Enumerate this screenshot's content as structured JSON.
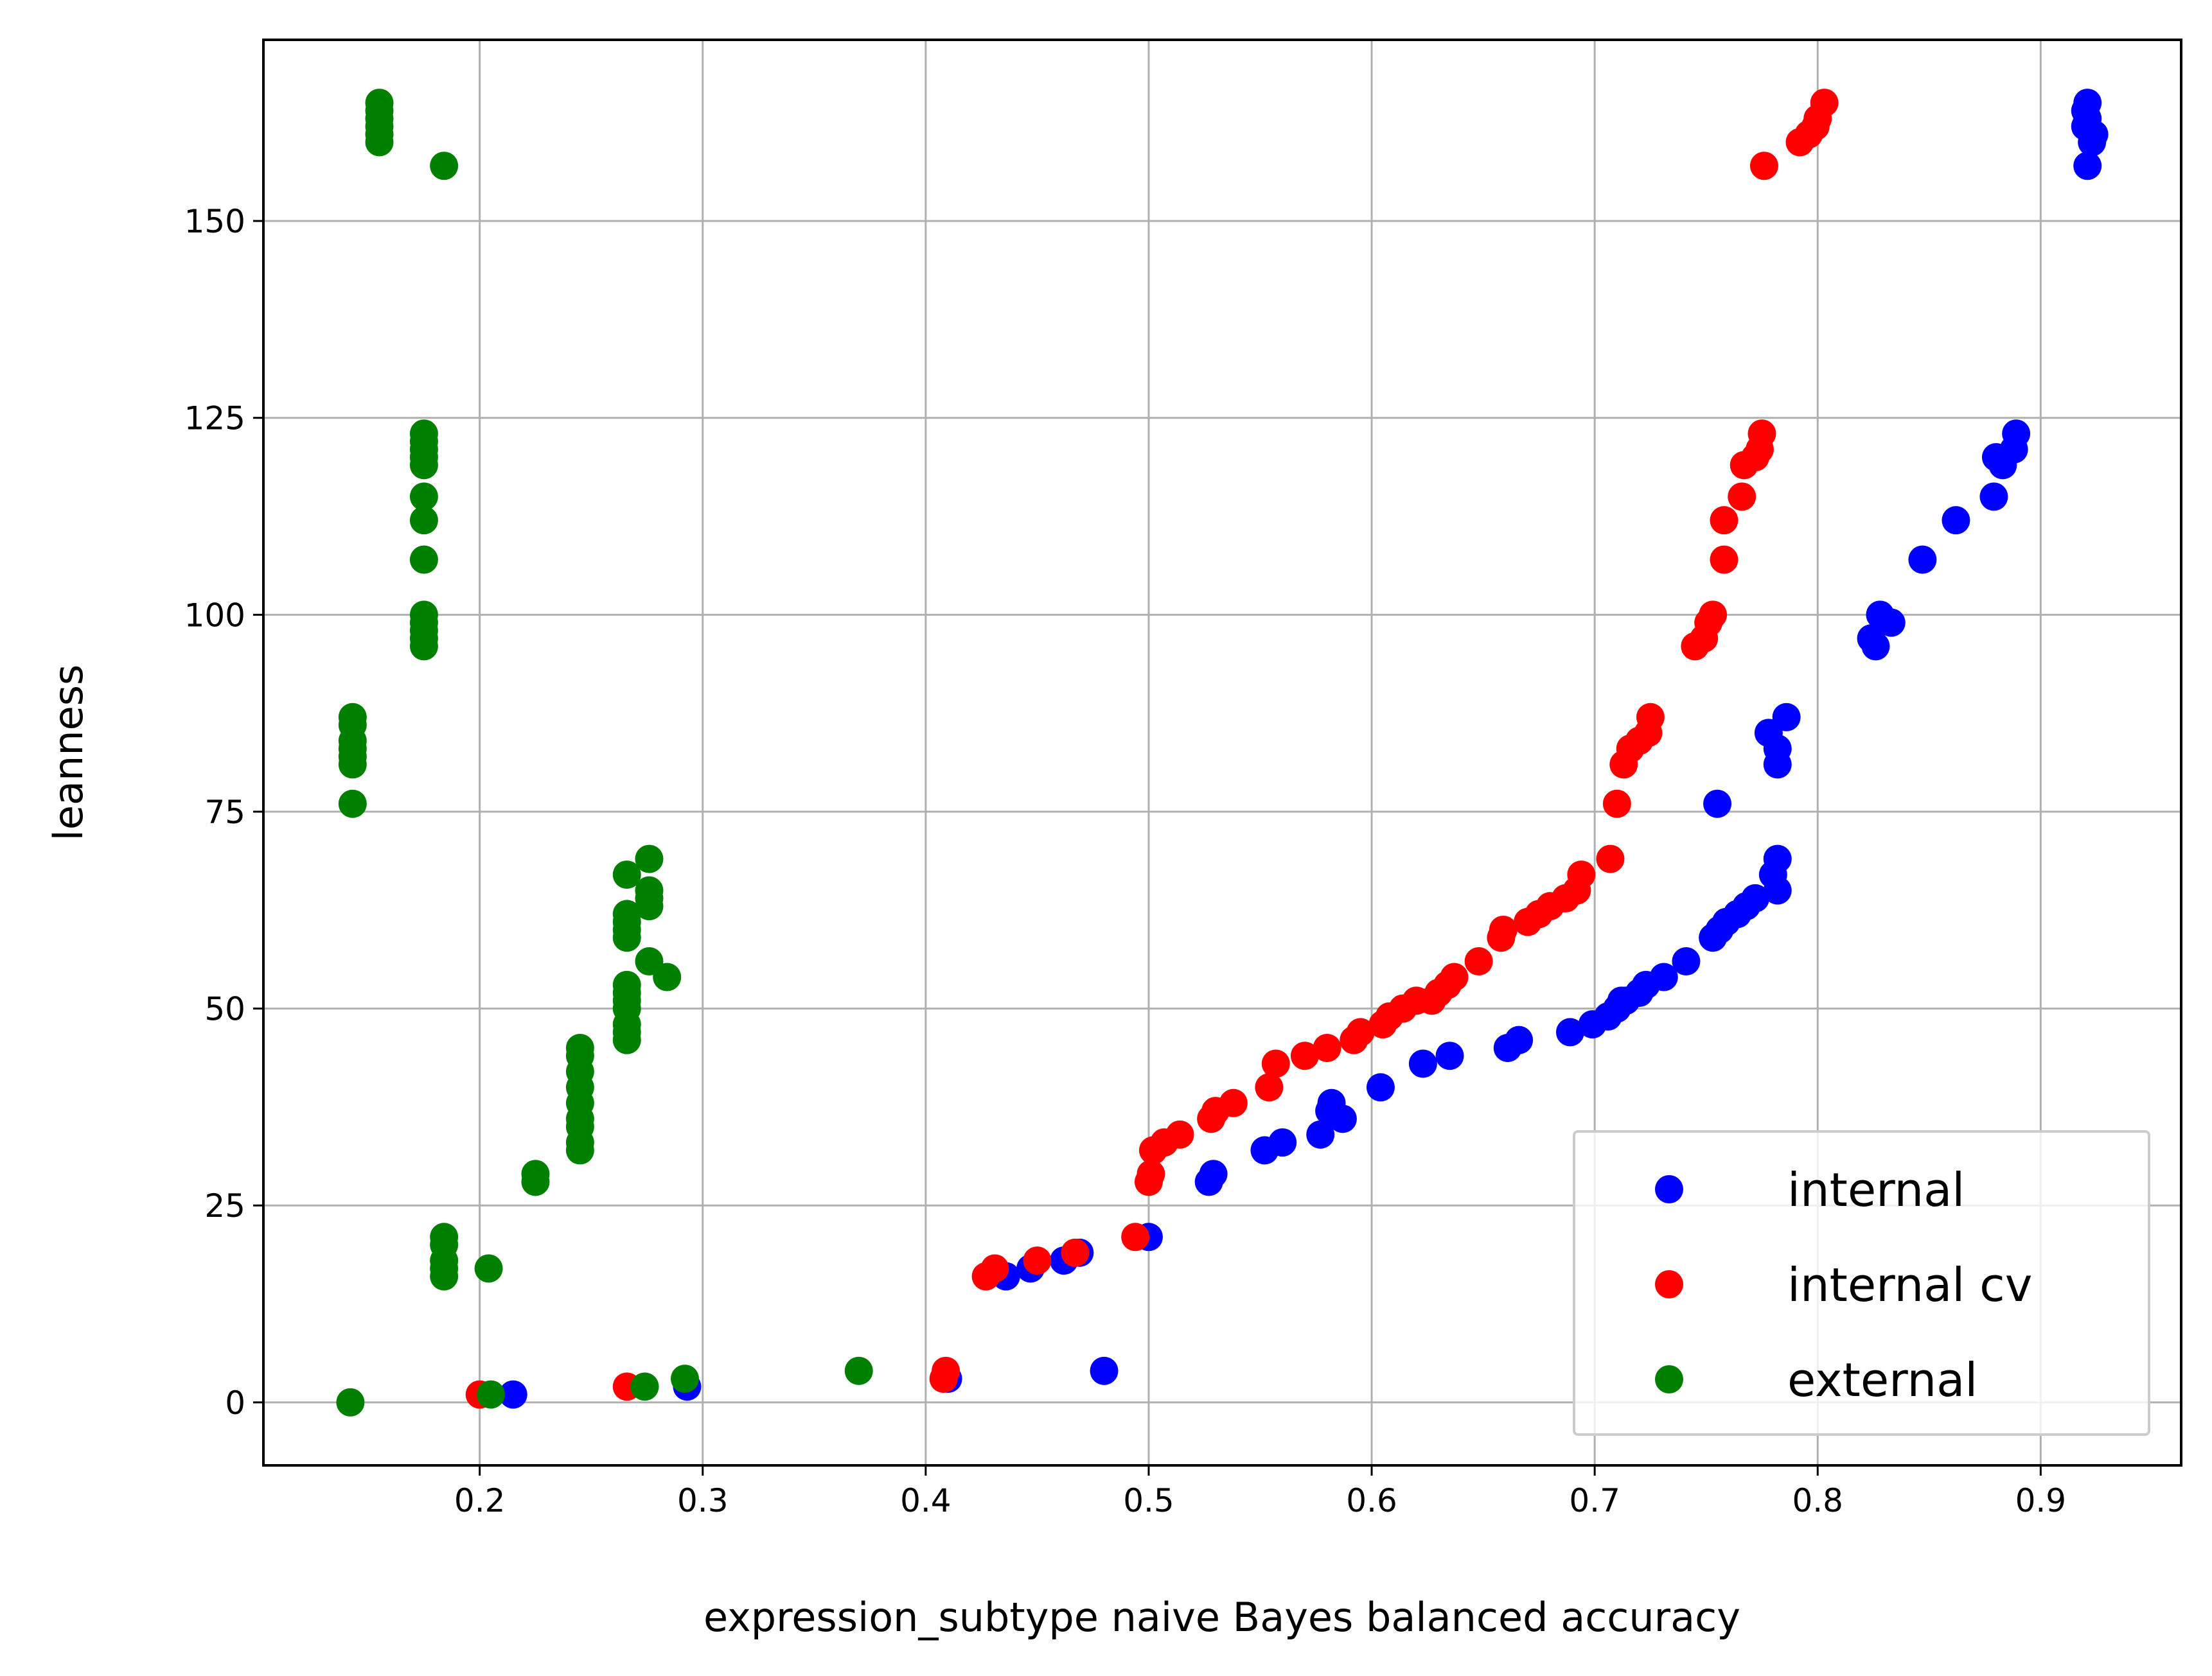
{
  "chart_data": {
    "type": "scatter",
    "title": "",
    "xlabel": "expression_subtype naive Bayes balanced accuracy",
    "ylabel": "leanness",
    "xlim": [
      0.103,
      0.963
    ],
    "ylim": [
      -8,
      173
    ],
    "xticks": [
      0.2,
      0.3,
      0.4,
      0.5,
      0.6,
      0.7,
      0.8,
      0.9
    ],
    "xtick_labels": [
      "0.2",
      "0.3",
      "0.4",
      "0.5",
      "0.6",
      "0.7",
      "0.8",
      "0.9"
    ],
    "yticks": [
      0,
      25,
      50,
      75,
      100,
      125,
      150
    ],
    "ytick_labels": [
      "0",
      "25",
      "50",
      "75",
      "100",
      "125",
      "150"
    ],
    "grid": true,
    "legend_position": "lower-right",
    "series": [
      {
        "name": "internal",
        "color": "#0000ff",
        "points": [
          [
            0.215,
            1
          ],
          [
            0.293,
            2
          ],
          [
            0.41,
            3
          ],
          [
            0.48,
            4
          ],
          [
            0.436,
            16
          ],
          [
            0.447,
            17
          ],
          [
            0.462,
            18
          ],
          [
            0.469,
            19
          ],
          [
            0.5,
            21
          ],
          [
            0.527,
            28
          ],
          [
            0.529,
            29
          ],
          [
            0.552,
            32
          ],
          [
            0.56,
            33
          ],
          [
            0.577,
            34
          ],
          [
            0.587,
            36
          ],
          [
            0.581,
            37
          ],
          [
            0.582,
            38
          ],
          [
            0.604,
            40
          ],
          [
            0.623,
            43
          ],
          [
            0.635,
            44
          ],
          [
            0.661,
            45
          ],
          [
            0.666,
            46
          ],
          [
            0.689,
            47
          ],
          [
            0.699,
            48
          ],
          [
            0.706,
            49
          ],
          [
            0.71,
            50
          ],
          [
            0.714,
            51
          ],
          [
            0.712,
            51
          ],
          [
            0.72,
            52
          ],
          [
            0.723,
            53
          ],
          [
            0.731,
            54
          ],
          [
            0.741,
            56
          ],
          [
            0.753,
            59
          ],
          [
            0.756,
            60
          ],
          [
            0.759,
            61
          ],
          [
            0.764,
            62
          ],
          [
            0.768,
            63
          ],
          [
            0.772,
            64
          ],
          [
            0.782,
            65
          ],
          [
            0.78,
            67
          ],
          [
            0.782,
            69
          ],
          [
            0.755,
            76
          ],
          [
            0.782,
            81
          ],
          [
            0.782,
            83
          ],
          [
            0.778,
            85
          ],
          [
            0.786,
            87
          ],
          [
            0.826,
            96
          ],
          [
            0.824,
            97
          ],
          [
            0.833,
            99
          ],
          [
            0.828,
            100
          ],
          [
            0.847,
            107
          ],
          [
            0.862,
            112
          ],
          [
            0.879,
            115
          ],
          [
            0.883,
            119
          ],
          [
            0.88,
            120
          ],
          [
            0.888,
            121
          ],
          [
            0.889,
            123
          ],
          [
            0.921,
            157
          ],
          [
            0.923,
            160
          ],
          [
            0.924,
            161
          ],
          [
            0.92,
            162
          ],
          [
            0.921,
            163
          ],
          [
            0.92,
            164
          ],
          [
            0.921,
            165
          ]
        ]
      },
      {
        "name": "internal cv",
        "color": "#ff0000",
        "points": [
          [
            0.2,
            1
          ],
          [
            0.266,
            2
          ],
          [
            0.408,
            3
          ],
          [
            0.409,
            4
          ],
          [
            0.427,
            16
          ],
          [
            0.431,
            17
          ],
          [
            0.45,
            18
          ],
          [
            0.467,
            19
          ],
          [
            0.494,
            21
          ],
          [
            0.5,
            28
          ],
          [
            0.501,
            29
          ],
          [
            0.502,
            32
          ],
          [
            0.507,
            33
          ],
          [
            0.514,
            34
          ],
          [
            0.528,
            36
          ],
          [
            0.53,
            37
          ],
          [
            0.538,
            38
          ],
          [
            0.554,
            40
          ],
          [
            0.557,
            43
          ],
          [
            0.57,
            44
          ],
          [
            0.58,
            45
          ],
          [
            0.592,
            46
          ],
          [
            0.595,
            47
          ],
          [
            0.605,
            48
          ],
          [
            0.608,
            49
          ],
          [
            0.614,
            50
          ],
          [
            0.62,
            51
          ],
          [
            0.627,
            51
          ],
          [
            0.63,
            52
          ],
          [
            0.634,
            53
          ],
          [
            0.637,
            54
          ],
          [
            0.648,
            56
          ],
          [
            0.658,
            59
          ],
          [
            0.659,
            60
          ],
          [
            0.67,
            61
          ],
          [
            0.675,
            62
          ],
          [
            0.68,
            63
          ],
          [
            0.687,
            64
          ],
          [
            0.692,
            65
          ],
          [
            0.694,
            67
          ],
          [
            0.707,
            69
          ],
          [
            0.71,
            76
          ],
          [
            0.713,
            81
          ],
          [
            0.716,
            83
          ],
          [
            0.72,
            84
          ],
          [
            0.724,
            85
          ],
          [
            0.725,
            87
          ],
          [
            0.745,
            96
          ],
          [
            0.749,
            97
          ],
          [
            0.751,
            99
          ],
          [
            0.753,
            100
          ],
          [
            0.758,
            107
          ],
          [
            0.758,
            112
          ],
          [
            0.766,
            115
          ],
          [
            0.767,
            119
          ],
          [
            0.772,
            120
          ],
          [
            0.774,
            121
          ],
          [
            0.775,
            123
          ],
          [
            0.776,
            157
          ],
          [
            0.792,
            160
          ],
          [
            0.796,
            161
          ],
          [
            0.799,
            162
          ],
          [
            0.8,
            163
          ],
          [
            0.803,
            165
          ]
        ]
      },
      {
        "name": "external",
        "color": "#008000",
        "points": [
          [
            0.142,
            0
          ],
          [
            0.205,
            1
          ],
          [
            0.274,
            2
          ],
          [
            0.292,
            3
          ],
          [
            0.37,
            4
          ],
          [
            0.184,
            16
          ],
          [
            0.184,
            17
          ],
          [
            0.204,
            17
          ],
          [
            0.184,
            18
          ],
          [
            0.184,
            20
          ],
          [
            0.184,
            21
          ],
          [
            0.225,
            28
          ],
          [
            0.225,
            29
          ],
          [
            0.245,
            32
          ],
          [
            0.245,
            33
          ],
          [
            0.245,
            35
          ],
          [
            0.245,
            36
          ],
          [
            0.245,
            38
          ],
          [
            0.245,
            40
          ],
          [
            0.245,
            42
          ],
          [
            0.245,
            44
          ],
          [
            0.245,
            45
          ],
          [
            0.266,
            46
          ],
          [
            0.266,
            47
          ],
          [
            0.266,
            48
          ],
          [
            0.266,
            50
          ],
          [
            0.266,
            51
          ],
          [
            0.266,
            52
          ],
          [
            0.266,
            53
          ],
          [
            0.284,
            54
          ],
          [
            0.276,
            56
          ],
          [
            0.266,
            59
          ],
          [
            0.266,
            60
          ],
          [
            0.266,
            61
          ],
          [
            0.266,
            62
          ],
          [
            0.276,
            63
          ],
          [
            0.276,
            64
          ],
          [
            0.276,
            65
          ],
          [
            0.266,
            67
          ],
          [
            0.276,
            69
          ],
          [
            0.143,
            76
          ],
          [
            0.143,
            81
          ],
          [
            0.143,
            82
          ],
          [
            0.143,
            83
          ],
          [
            0.143,
            84
          ],
          [
            0.143,
            86
          ],
          [
            0.143,
            87
          ],
          [
            0.175,
            96
          ],
          [
            0.175,
            97
          ],
          [
            0.175,
            98
          ],
          [
            0.175,
            99
          ],
          [
            0.175,
            100
          ],
          [
            0.175,
            107
          ],
          [
            0.175,
            112
          ],
          [
            0.175,
            115
          ],
          [
            0.175,
            119
          ],
          [
            0.175,
            120
          ],
          [
            0.175,
            121
          ],
          [
            0.175,
            122
          ],
          [
            0.175,
            123
          ],
          [
            0.184,
            157
          ],
          [
            0.155,
            160
          ],
          [
            0.155,
            161
          ],
          [
            0.155,
            162
          ],
          [
            0.155,
            163
          ],
          [
            0.155,
            164
          ],
          [
            0.155,
            165
          ]
        ]
      }
    ]
  }
}
